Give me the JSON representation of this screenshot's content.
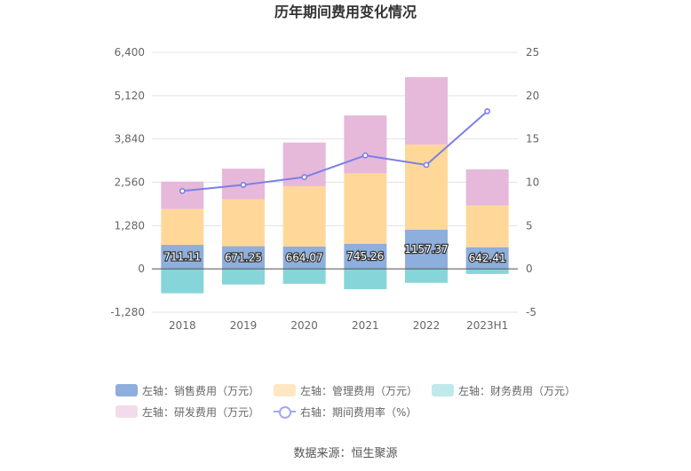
{
  "chart_data": {
    "type": "bar",
    "title": "历年期间费用变化情况",
    "categories": [
      "2018",
      "2019",
      "2020",
      "2021",
      "2022",
      "2023H1"
    ],
    "left_axis": {
      "min": -1280,
      "max": 6400,
      "ticks": [
        "-1,280",
        "0",
        "1,280",
        "2,560",
        "3,840",
        "5,120",
        "6,400"
      ]
    },
    "right_axis": {
      "min": -5,
      "max": 25,
      "ticks": [
        "-5",
        "0",
        "5",
        "10",
        "15",
        "20",
        "25"
      ]
    },
    "series": [
      {
        "name": "左轴：销售费用（万元）",
        "key": "sales",
        "color": "#8eaedd",
        "values": [
          711.11,
          671.25,
          664.07,
          745.26,
          1157.37,
          642.41
        ],
        "labels": [
          "711.11",
          "671.25",
          "664.07",
          "745.26",
          "1157.37",
          "642.41"
        ]
      },
      {
        "name": "左轴：管理费用（万元）",
        "key": "admin",
        "color": "#ffd899",
        "values": [
          1060,
          1390,
          1780,
          2080,
          2520,
          1230
        ]
      },
      {
        "name": "左轴：财务费用（万元）",
        "key": "finance",
        "color": "#86d5d9",
        "values": [
          -720,
          -460,
          -440,
          -600,
          -410,
          -150
        ]
      },
      {
        "name": "左轴：研发费用（万元）",
        "key": "rd",
        "color": "#e6b8da",
        "values": [
          810,
          900,
          1290,
          1710,
          1990,
          1070
        ]
      },
      {
        "name": "右轴：期间费用率（%）",
        "key": "rate",
        "color": "#7b7fe6",
        "values": [
          9.0,
          9.7,
          10.6,
          13.1,
          12.0,
          18.2
        ]
      }
    ],
    "grid": true,
    "legend_position": "bottom"
  },
  "source": "数据来源：恒生聚源"
}
